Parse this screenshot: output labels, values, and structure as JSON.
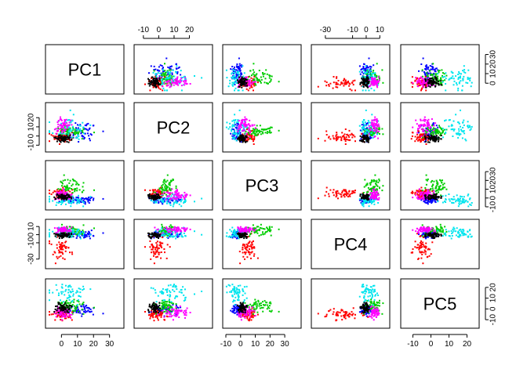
{
  "chart_data": {
    "type": "scatter",
    "title": "",
    "variables": [
      "PC1",
      "PC2",
      "PC3",
      "PC4",
      "PC5"
    ],
    "ranges": {
      "PC1": [
        -8,
        37
      ],
      "PC2": [
        -14,
        33
      ],
      "PC3": [
        -10,
        39
      ],
      "PC4": [
        -38,
        15
      ],
      "PC5": [
        -15,
        25
      ]
    },
    "ticks": {
      "PC1": [
        "0",
        "10",
        "20",
        "30"
      ],
      "PC2": [
        "-10",
        "0",
        "10",
        "20"
      ],
      "PC3": [
        "-10",
        "0",
        "10",
        "20",
        "30"
      ],
      "PC4": [
        "-30",
        "-10",
        "0",
        "10"
      ],
      "PC5": [
        "-10",
        "0",
        "10",
        "20"
      ]
    },
    "tick_values": {
      "PC1": [
        0,
        10,
        20,
        30
      ],
      "PC2": [
        -10,
        0,
        10,
        20
      ],
      "PC3": [
        -10,
        0,
        10,
        20,
        30
      ],
      "PC4": [
        -30,
        -10,
        0,
        10
      ],
      "PC5": [
        -10,
        0,
        10,
        20
      ]
    },
    "axis_placement": {
      "top": [
        "PC2",
        "PC4"
      ],
      "bottom": [
        "PC1",
        "PC3",
        "PC5"
      ],
      "left": [
        "PC2",
        "PC4"
      ],
      "right": [
        "PC1",
        "PC3",
        "PC5"
      ]
    },
    "groups": [
      {
        "color": "#0000ff",
        "center": [
          11,
          4,
          -2,
          0,
          -1
        ],
        "spread": [
          6,
          5,
          1.8,
          2.5,
          2.5
        ]
      },
      {
        "color": "#ff0000",
        "center": [
          0,
          -1,
          5,
          -15,
          -5
        ],
        "spread": [
          3,
          3,
          2.5,
          7,
          2.5
        ]
      },
      {
        "color": "#00cd00",
        "center": [
          4,
          5,
          12,
          5,
          3
        ],
        "spread": [
          5,
          3,
          6,
          3,
          3
        ]
      },
      {
        "color": "#00e5ee",
        "center": [
          4,
          9,
          -3,
          2,
          15
        ],
        "spread": [
          6,
          6,
          3,
          3,
          5
        ]
      },
      {
        "color": "#ff00ff",
        "center": [
          1,
          12,
          3,
          6,
          -3
        ],
        "spread": [
          3,
          5,
          3,
          2,
          2.5
        ]
      },
      {
        "color": "#000000",
        "center": [
          1,
          -3,
          1,
          -1,
          1
        ],
        "spread": [
          3,
          2,
          1.5,
          1.5,
          2
        ]
      }
    ],
    "grid": false,
    "legend": "none"
  }
}
